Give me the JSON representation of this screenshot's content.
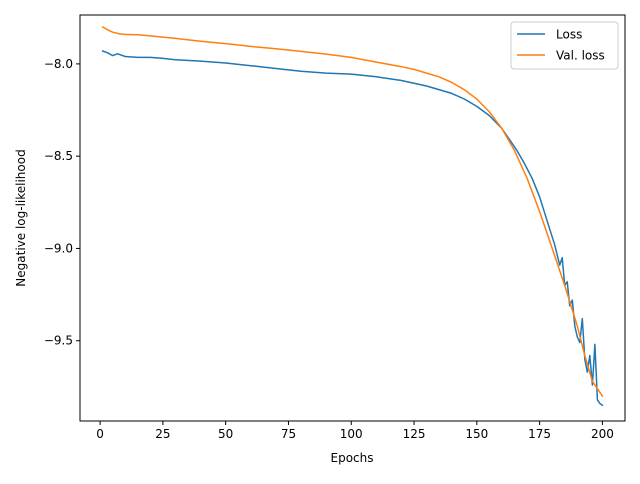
{
  "chart_data": {
    "type": "line",
    "title": "",
    "xlabel": "Epochs",
    "ylabel": "Negative log-likelihood",
    "xlim": [
      -8,
      209
    ],
    "ylim": [
      -9.935,
      -7.735
    ],
    "xticks": [
      0,
      25,
      50,
      75,
      100,
      125,
      150,
      175,
      200
    ],
    "xtick_labels": [
      "0",
      "25",
      "50",
      "75",
      "100",
      "125",
      "150",
      "175",
      "200"
    ],
    "yticks": [
      -8.0,
      -8.5,
      -9.0,
      -9.5
    ],
    "ytick_labels": [
      "−8.0",
      "−8.5",
      "−9.0",
      "−9.5"
    ],
    "grid": false,
    "legend_position": "top-right",
    "series": [
      {
        "name": "Loss",
        "color": "#1f77b4",
        "x": [
          1,
          3,
          5,
          7,
          10,
          15,
          20,
          25,
          30,
          40,
          50,
          60,
          70,
          80,
          90,
          100,
          110,
          120,
          130,
          140,
          145,
          150,
          155,
          160,
          163,
          166,
          169,
          172,
          175,
          178,
          181,
          183,
          184,
          185,
          186,
          187,
          188,
          189,
          190,
          191,
          192,
          193,
          194,
          195,
          196,
          197,
          198,
          199,
          200
        ],
        "y": [
          -7.93,
          -7.94,
          -7.955,
          -7.945,
          -7.96,
          -7.965,
          -7.965,
          -7.97,
          -7.978,
          -7.985,
          -7.995,
          -8.01,
          -8.025,
          -8.04,
          -8.05,
          -8.055,
          -8.07,
          -8.09,
          -8.12,
          -8.16,
          -8.19,
          -8.23,
          -8.28,
          -8.35,
          -8.41,
          -8.47,
          -8.54,
          -8.62,
          -8.72,
          -8.85,
          -8.98,
          -9.09,
          -9.05,
          -9.2,
          -9.18,
          -9.31,
          -9.28,
          -9.42,
          -9.48,
          -9.51,
          -9.38,
          -9.6,
          -9.67,
          -9.58,
          -9.74,
          -9.52,
          -9.82,
          -9.84,
          -9.85
        ]
      },
      {
        "name": "Val. loss",
        "color": "#ff7f0e",
        "x": [
          1,
          3,
          5,
          8,
          10,
          15,
          20,
          25,
          30,
          40,
          50,
          60,
          70,
          80,
          90,
          100,
          110,
          120,
          125,
          130,
          135,
          140,
          145,
          150,
          155,
          160,
          165,
          170,
          175,
          180,
          185,
          190,
          193,
          196,
          200
        ],
        "y": [
          -7.8,
          -7.815,
          -7.828,
          -7.838,
          -7.84,
          -7.842,
          -7.848,
          -7.855,
          -7.862,
          -7.877,
          -7.89,
          -7.905,
          -7.918,
          -7.932,
          -7.947,
          -7.965,
          -7.99,
          -8.015,
          -8.03,
          -8.05,
          -8.07,
          -8.1,
          -8.14,
          -8.19,
          -8.26,
          -8.35,
          -8.47,
          -8.62,
          -8.8,
          -9.0,
          -9.2,
          -9.42,
          -9.58,
          -9.72,
          -9.8
        ]
      }
    ]
  }
}
